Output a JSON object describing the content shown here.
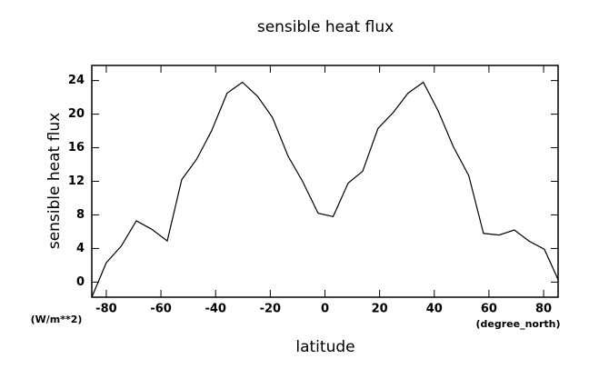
{
  "chart_data": {
    "type": "line",
    "title": "sensible heat flux",
    "xlabel": "latitude",
    "ylabel": "sensible heat flux",
    "y_unit": "(W/m**2)",
    "x_unit": "(degree_north)",
    "x": [
      -85.3,
      -80,
      -74.5,
      -69,
      -63.4,
      -57.7,
      -52.4,
      -47,
      -41.5,
      -35.8,
      -30.2,
      -24.6,
      -19.2,
      -13.5,
      -8.2,
      -2.5,
      3,
      8.5,
      13.8,
      19.4,
      25,
      30.4,
      36,
      41.4,
      47,
      52.6,
      58,
      63.7,
      69.3,
      74.6,
      80.3,
      85.3
    ],
    "series": [
      {
        "color": "#000000",
        "values": [
          -1.8,
          2.3,
          4.3,
          7.3,
          6.3,
          4.9,
          12.2,
          14.6,
          18.0,
          22.5,
          23.8,
          22.1,
          19.6,
          15.0,
          12.0,
          8.2,
          7.8,
          11.8,
          13.2,
          18.3,
          20.2,
          22.5,
          23.8,
          20.4,
          16.1,
          12.7,
          5.8,
          5.6,
          6.2,
          4.9,
          3.9,
          0.3
        ]
      }
    ],
    "xlim": [
      -85.3,
      85.3
    ],
    "ylim": [
      -1.8,
      25.8
    ],
    "xticks": [
      -80,
      -60,
      -40,
      -20,
      0,
      20,
      40,
      60,
      80
    ],
    "yticks": [
      0,
      4,
      8,
      12,
      16,
      20,
      24
    ]
  }
}
